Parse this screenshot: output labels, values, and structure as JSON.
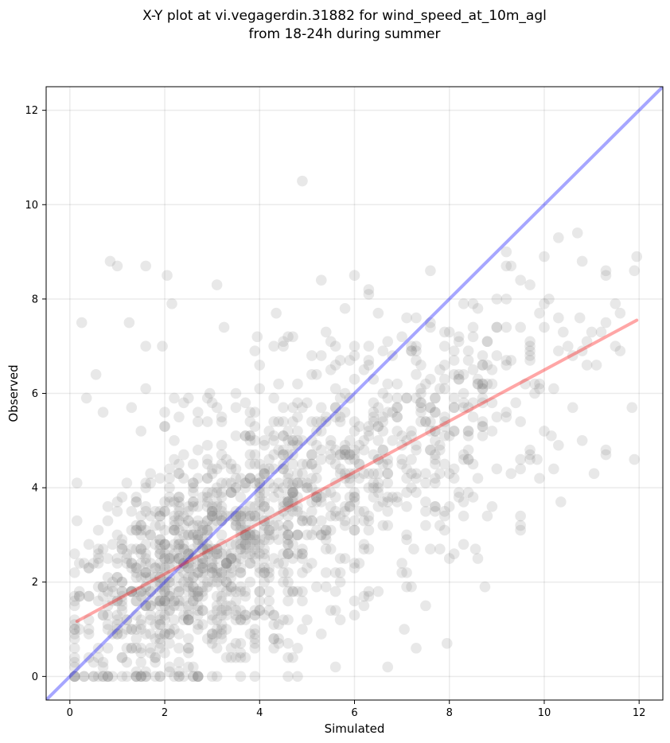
{
  "chart_data": {
    "type": "scatter",
    "title": "X-Y plot at vi.vegagerdin.31882 for wind_speed_at_10m_agl\nfrom 18-24h during summer",
    "xlabel": "Simulated",
    "ylabel": "Observed",
    "xlim": [
      -0.5,
      12.5
    ],
    "ylim": [
      -0.5,
      12.5
    ],
    "xticks": [
      0,
      2,
      4,
      6,
      8,
      10,
      12
    ],
    "yticks": [
      0,
      2,
      4,
      6,
      8,
      10,
      12
    ],
    "grid": true,
    "point_color": "#808080",
    "point_alpha": 0.18,
    "lines": [
      {
        "role": "one-to-one",
        "color": "#0000ff",
        "alpha": 0.35,
        "x": [
          -0.5,
          12.5
        ],
        "y": [
          -0.5,
          12.5
        ]
      },
      {
        "role": "regression-fit",
        "color": "#ff0000",
        "alpha": 0.35,
        "x": [
          0.15,
          11.95
        ],
        "y": [
          1.17,
          7.55
        ]
      }
    ],
    "point_count_approx": 1500,
    "points_outliers": [
      [
        4.9,
        10.5
      ],
      [
        0.85,
        8.8
      ],
      [
        1.0,
        8.7
      ],
      [
        1.6,
        8.7
      ],
      [
        0.25,
        7.5
      ],
      [
        2.05,
        8.5
      ],
      [
        2.15,
        7.9
      ],
      [
        1.25,
        7.5
      ],
      [
        3.25,
        7.4
      ],
      [
        3.95,
        7.2
      ],
      [
        4.35,
        7.7
      ],
      [
        5.3,
        8.4
      ],
      [
        5.8,
        7.8
      ],
      [
        6.0,
        8.5
      ],
      [
        6.3,
        8.1
      ],
      [
        9.2,
        9.0
      ],
      [
        10.3,
        9.3
      ],
      [
        10.7,
        9.4
      ],
      [
        11.95,
        8.9
      ],
      [
        10.75,
        7.6
      ],
      [
        11.3,
        8.5
      ],
      [
        11.6,
        7.7
      ],
      [
        11.85,
        5.7
      ],
      [
        11.9,
        4.6
      ],
      [
        11.05,
        4.3
      ],
      [
        10.35,
        3.7
      ],
      [
        9.5,
        3.4
      ],
      [
        8.75,
        1.9
      ],
      [
        8.55,
        2.7
      ],
      [
        8.3,
        2.8
      ],
      [
        7.95,
        0.7
      ],
      [
        7.3,
        0.6
      ],
      [
        7.05,
        1.0
      ],
      [
        5.6,
        0.2
      ],
      [
        7.1,
        2.2
      ],
      [
        0.15,
        4.1
      ],
      [
        0.35,
        5.9
      ],
      [
        0.55,
        6.4
      ],
      [
        0.7,
        5.6
      ],
      [
        1.6,
        7.0
      ],
      [
        1.95,
        7.0
      ],
      [
        2.95,
        6.0
      ],
      [
        1.3,
        5.7
      ],
      [
        10.15,
        5.1
      ],
      [
        11.3,
        4.8
      ],
      [
        9.85,
        4.6
      ],
      [
        10.8,
        5.0
      ],
      [
        7.5,
        1.5
      ],
      [
        7.25,
        2.7
      ],
      [
        0.15,
        3.3
      ]
    ],
    "density_clusters": [
      {
        "cx": 1.8,
        "cy": 2.0,
        "sx": 0.9,
        "sy": 1.1,
        "n": 420
      },
      {
        "cx": 3.3,
        "cy": 2.6,
        "sx": 1.0,
        "sy": 1.3,
        "n": 380
      },
      {
        "cx": 5.0,
        "cy": 3.9,
        "sx": 1.2,
        "sy": 1.5,
        "n": 330
      },
      {
        "cx": 7.3,
        "cy": 5.0,
        "sx": 1.3,
        "sy": 1.4,
        "n": 230
      },
      {
        "cx": 9.3,
        "cy": 6.3,
        "sx": 1.2,
        "sy": 1.2,
        "n": 90
      }
    ]
  }
}
